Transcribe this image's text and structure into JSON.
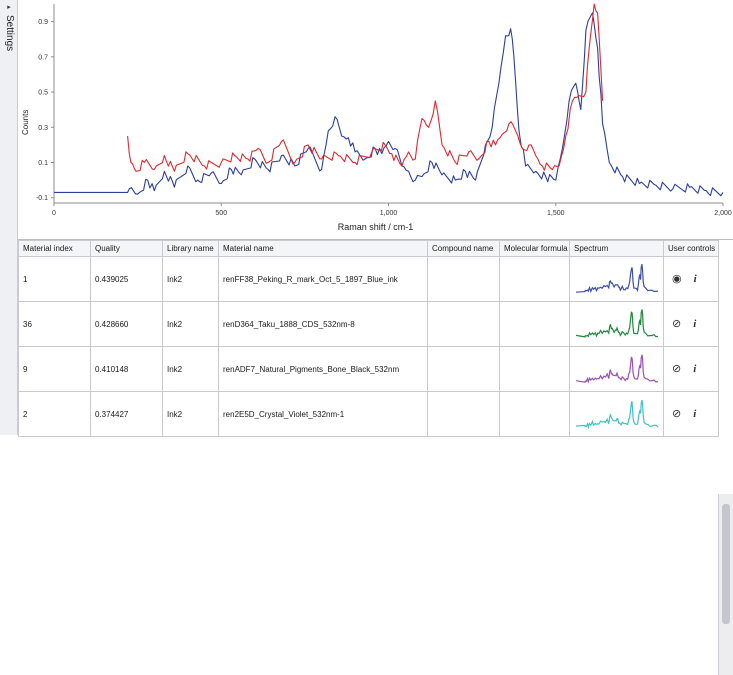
{
  "settings_tab": {
    "label": "Settings",
    "arrow": "▸"
  },
  "chart_data": {
    "type": "line",
    "title": "",
    "xlabel": "Raman shift / cm-1",
    "ylabel": "Counts",
    "xlim": [
      0,
      2000
    ],
    "ylim": [
      -0.13,
      1.0
    ],
    "x_ticks": [
      "0",
      "500",
      "1,000",
      "1,500",
      "2,000"
    ],
    "x_tick_values": [
      0,
      500,
      1000,
      1500,
      2000
    ],
    "y_ticks": [
      "-0.1",
      "0.1",
      "0.3",
      "0.5",
      "0.7",
      "0.9"
    ],
    "y_tick_values": [
      -0.1,
      0.1,
      0.3,
      0.5,
      0.7,
      0.9
    ],
    "grid": false,
    "series": [
      {
        "color": "#2b3f9e",
        "x": [
          0,
          220,
          225,
          250,
          280,
          300,
          330,
          360,
          400,
          430,
          470,
          500,
          530,
          560,
          600,
          640,
          680,
          720,
          760,
          800,
          820,
          840,
          860,
          880,
          900,
          930,
          960,
          980,
          1000,
          1020,
          1040,
          1060,
          1080,
          1100,
          1130,
          1160,
          1200,
          1230,
          1260,
          1290,
          1310,
          1330,
          1350,
          1365,
          1375,
          1390,
          1410,
          1440,
          1470,
          1500,
          1520,
          1540,
          1560,
          1575,
          1590,
          1610,
          1625,
          1640,
          1660,
          1700,
          1750,
          1800,
          1850,
          1900,
          1950,
          2000
        ],
        "y": [
          -0.07,
          -0.07,
          -0.05,
          -0.08,
          0.0,
          -0.06,
          0.05,
          -0.04,
          0.08,
          0.0,
          0.04,
          -0.02,
          0.06,
          0.03,
          0.12,
          0.06,
          0.14,
          0.08,
          0.18,
          0.06,
          0.28,
          0.36,
          0.25,
          0.24,
          0.16,
          0.12,
          0.18,
          0.15,
          0.22,
          0.18,
          0.08,
          0.05,
          0.0,
          0.02,
          0.1,
          0.03,
          0.0,
          0.05,
          0.0,
          0.2,
          0.3,
          0.55,
          0.82,
          0.86,
          0.7,
          0.28,
          0.08,
          0.05,
          0.02,
          0.0,
          0.18,
          0.45,
          0.55,
          0.4,
          0.85,
          0.95,
          0.75,
          0.32,
          0.1,
          0.02,
          -0.02,
          -0.03,
          -0.05,
          -0.04,
          -0.06,
          -0.07
        ]
      },
      {
        "color": "#e0282e",
        "x": [
          220,
          230,
          245,
          270,
          300,
          330,
          360,
          400,
          450,
          500,
          540,
          580,
          610,
          640,
          680,
          720,
          760,
          800,
          850,
          900,
          950,
          990,
          1010,
          1040,
          1060,
          1080,
          1100,
          1120,
          1140,
          1160,
          1200,
          1240,
          1270,
          1300,
          1320,
          1340,
          1360,
          1380,
          1400,
          1420,
          1440,
          1460,
          1490,
          1510,
          1530,
          1550,
          1570,
          1590,
          1600,
          1615,
          1625,
          1640
        ],
        "y": [
          0.25,
          0.1,
          0.05,
          0.1,
          0.06,
          0.14,
          0.05,
          0.15,
          0.08,
          0.1,
          0.14,
          0.12,
          0.18,
          0.1,
          0.22,
          0.1,
          0.2,
          0.12,
          0.14,
          0.1,
          0.16,
          0.2,
          0.15,
          0.08,
          0.16,
          0.12,
          0.35,
          0.3,
          0.45,
          0.2,
          0.1,
          0.16,
          0.12,
          0.22,
          0.2,
          0.26,
          0.32,
          0.28,
          0.18,
          0.2,
          0.14,
          0.08,
          0.06,
          0.08,
          0.25,
          0.45,
          0.48,
          0.5,
          0.75,
          1.0,
          0.95,
          0.45
        ]
      }
    ]
  },
  "table": {
    "headers": [
      "Material index",
      "Quality",
      "Library name",
      "Material name",
      "Compound name",
      "Molecular formula",
      "Spectrum",
      "User controls"
    ],
    "rows": [
      {
        "index": "1",
        "quality": "0.439025",
        "library": "Ink2",
        "material": "renFF38_Peking_R_mark_Oct_5_1897_Blue_ink",
        "compound": "",
        "formula": "",
        "spectrum_color": "#3d4fa8",
        "visibility_icon": "eye-icon",
        "visibility_glyph": "◉",
        "info": "i"
      },
      {
        "index": "36",
        "quality": "0.428660",
        "library": "Ink2",
        "material": "renD364_Taku_1888_CDS_532nm-8",
        "compound": "",
        "formula": "",
        "spectrum_color": "#1f8a3a",
        "visibility_icon": "eye-hidden-icon",
        "visibility_glyph": "⊘",
        "info": "i"
      },
      {
        "index": "9",
        "quality": "0.410148",
        "library": "Ink2",
        "material": "renADF7_Natural_Pigments_Bone_Black_532nm",
        "compound": "",
        "formula": "",
        "spectrum_color": "#9b4fb8",
        "visibility_icon": "eye-hidden-icon",
        "visibility_glyph": "⊘",
        "info": "i"
      },
      {
        "index": "2",
        "quality": "0.374427",
        "library": "Ink2",
        "material": "ren2E5D_Crystal_Violet_532nm-1",
        "compound": "",
        "formula": "",
        "spectrum_color": "#3fc2c8",
        "visibility_icon": "eye-hidden-icon",
        "visibility_glyph": "⊘",
        "info": "i"
      }
    ]
  }
}
